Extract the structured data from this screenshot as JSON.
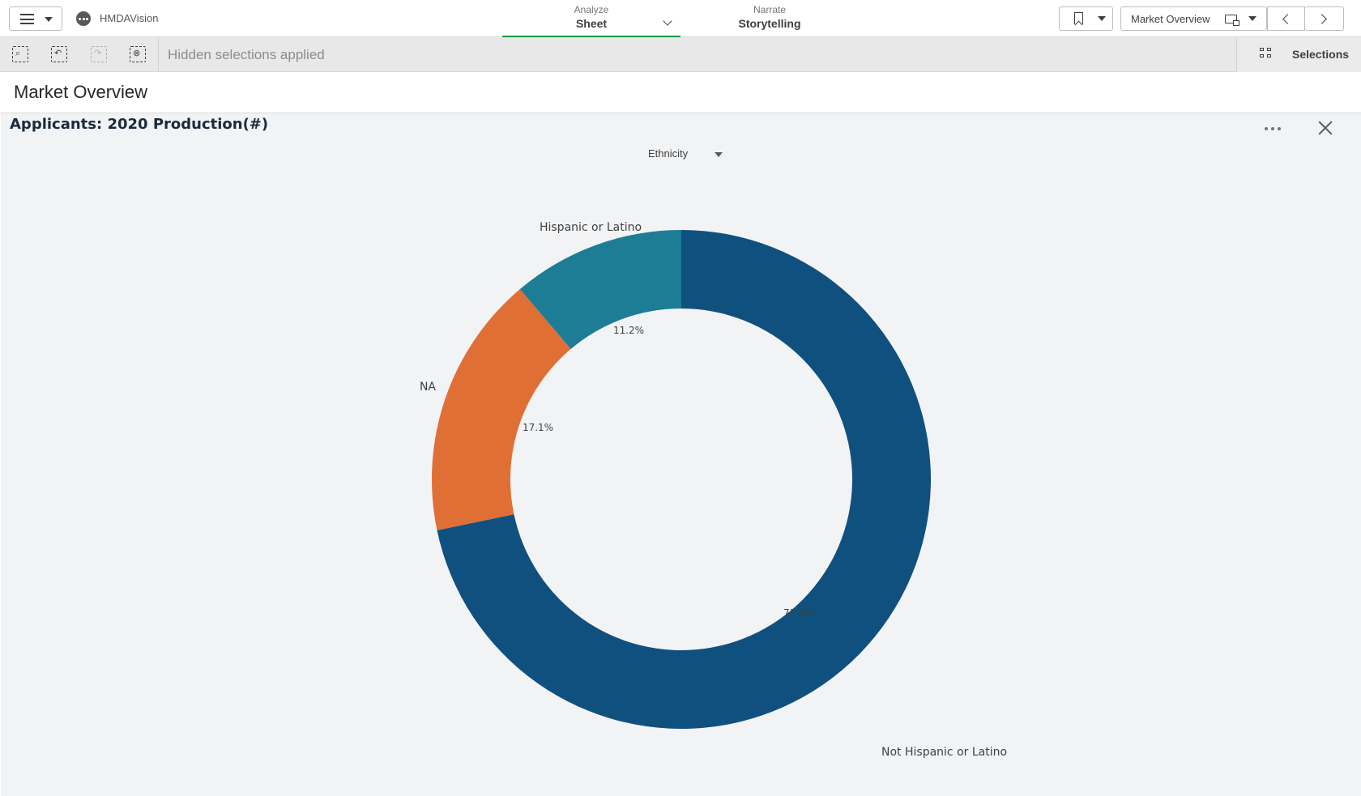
{
  "topbar": {
    "app_name": "HMDAVision",
    "analyze": {
      "small": "Analyze",
      "big": "Sheet"
    },
    "narrate": {
      "small": "Narrate",
      "big": "Storytelling"
    },
    "sheet_selector": "Market Overview"
  },
  "selection_bar": {
    "status": "Hidden selections applied",
    "selections_label": "Selections"
  },
  "sheet": {
    "title": "Market Overview"
  },
  "chart": {
    "title": "Applicants: 2020 Production(#)",
    "dimension": "Ethnicity"
  },
  "chart_data": {
    "type": "pie",
    "donut": true,
    "title": "Applicants: 2020 Production(#)",
    "dimension": "Ethnicity",
    "categories": [
      "Not Hispanic or Latino",
      "NA",
      "Hispanic or Latino"
    ],
    "values": [
      71.8,
      17.1,
      11.2
    ],
    "value_labels": [
      "71.8%",
      "17.1%",
      "11.2%"
    ],
    "colors": [
      "#10507e",
      "#e06f36",
      "#1c7d95"
    ]
  }
}
